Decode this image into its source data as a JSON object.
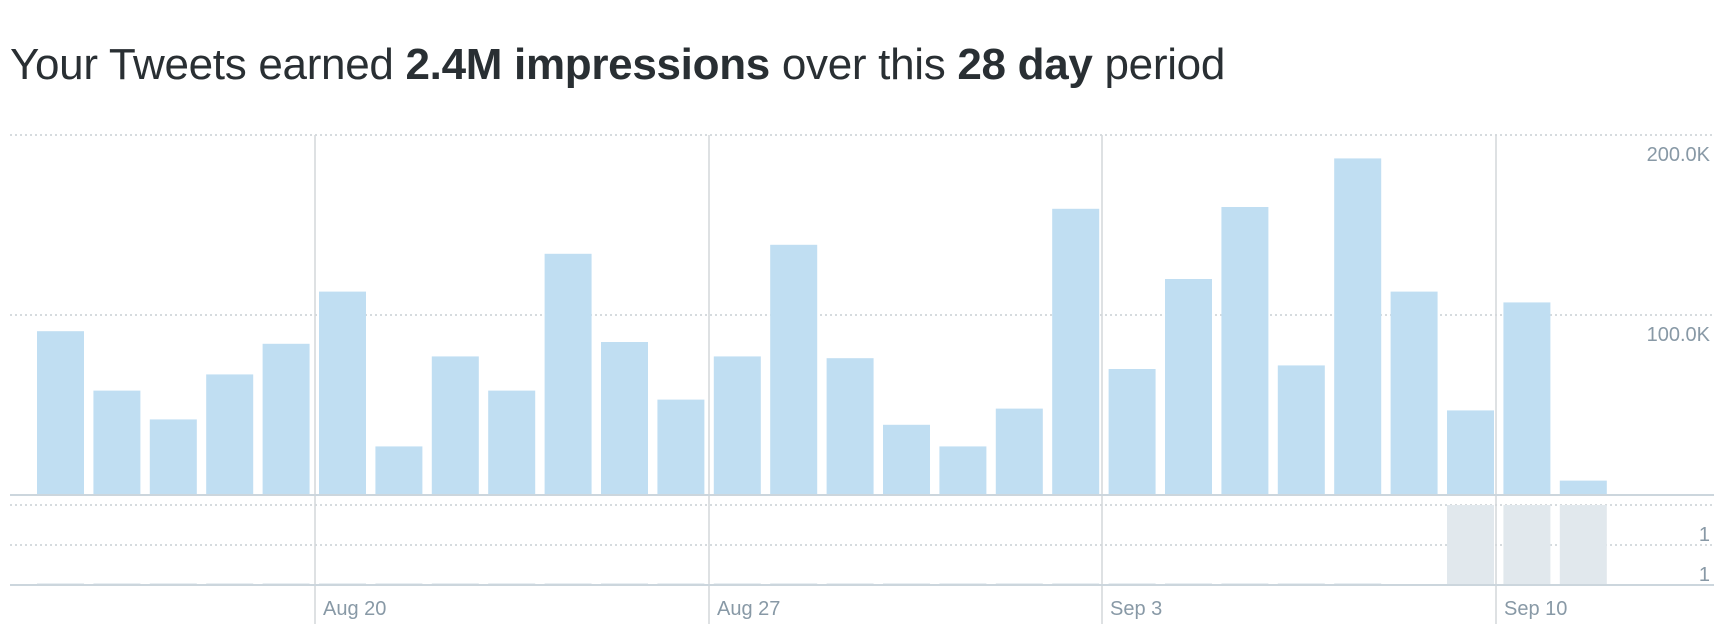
{
  "headline": {
    "prefix": "Your Tweets earned ",
    "impressions": "2.4M impressions",
    "middle": " over this ",
    "period": "28 day",
    "suffix": " period"
  },
  "chart_data": {
    "type": "bar",
    "title": "Your Tweets earned 2.4M impressions over this 28 day period",
    "start_date": "2019-08-15",
    "x_tick_labels": [
      "Aug 20",
      "Aug 27",
      "Sep 3",
      "Sep 10"
    ],
    "y_tick_labels": [
      "200.0K",
      "100.0K"
    ],
    "ylim": [
      0,
      200000
    ],
    "series": [
      {
        "values": [
          91000,
          58000,
          42000,
          67000,
          84000,
          113000,
          27000,
          77000,
          58000,
          134000,
          85000,
          53000,
          77000,
          139000,
          76000,
          39000,
          27000,
          48000,
          159000,
          70000,
          120000,
          160000,
          72000,
          187000,
          113000,
          47000,
          107000,
          8000
        ]
      }
    ],
    "secondary_panel": {
      "y_tick_labels": [
        "1",
        "1"
      ],
      "highlighted_days": [
        "Sep 8",
        "Sep 9",
        "Sep 10"
      ]
    },
    "colors": {
      "bar": "#c0def2",
      "secondary_bar": "#e1e8ed",
      "baseline": "#ccd6dd",
      "grid": "#c8cfd4",
      "week_line": "#d3d7da",
      "label": "#8899a6",
      "text": "#292f33"
    },
    "grid": true
  }
}
